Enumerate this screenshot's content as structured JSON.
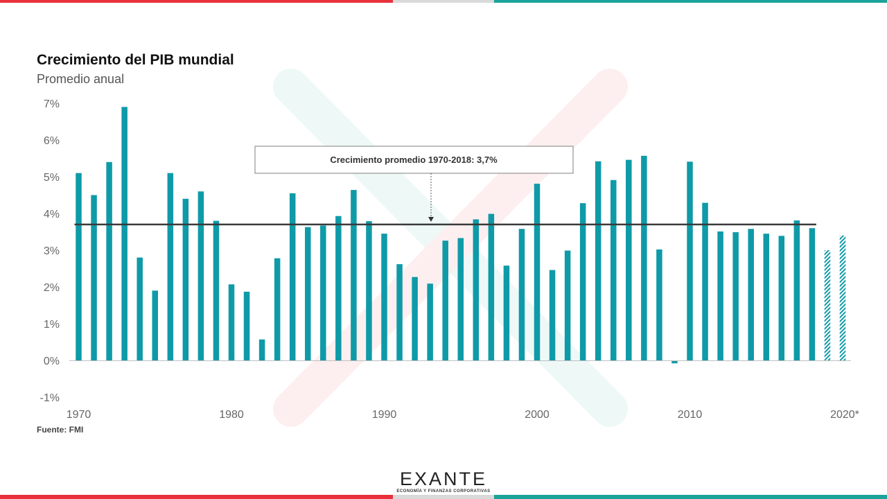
{
  "page": {
    "title": "Crecimiento del PIB mundial",
    "subtitle": "Promedio anual",
    "source": "Fuente: FMI",
    "logo": {
      "name": "EXANTE",
      "tagline": "ECONOMÍA Y FINANZAS CORPORATIVAS"
    },
    "colors": {
      "red": "#e8313a",
      "gray": "#d9d9d9",
      "teal": "#1aa39a",
      "bar": "#0f9aa8",
      "avg_line": "#3a3a3a"
    }
  },
  "chart_data": {
    "type": "bar",
    "title": "Crecimiento del PIB mundial",
    "subtitle": "Promedio anual",
    "xlabel": "",
    "ylabel": "",
    "ylim": [
      -1,
      7
    ],
    "y_ticks": [
      "-1%",
      "0%",
      "1%",
      "2%",
      "3%",
      "4%",
      "5%",
      "6%",
      "7%"
    ],
    "y_tick_values": [
      -1,
      0,
      1,
      2,
      3,
      4,
      5,
      6,
      7
    ],
    "x_tick_labels": [
      "1970",
      "1980",
      "1990",
      "2000",
      "2010",
      "2020*"
    ],
    "x_tick_years": [
      1970,
      1980,
      1990,
      2000,
      2010,
      2020
    ],
    "grid": false,
    "categories": [
      1970,
      1971,
      1972,
      1973,
      1974,
      1975,
      1976,
      1977,
      1978,
      1979,
      1980,
      1981,
      1982,
      1983,
      1984,
      1985,
      1986,
      1987,
      1988,
      1989,
      1990,
      1991,
      1992,
      1993,
      1994,
      1995,
      1996,
      1997,
      1998,
      1999,
      2000,
      2001,
      2002,
      2003,
      2004,
      2005,
      2006,
      2007,
      2008,
      2009,
      2010,
      2011,
      2012,
      2013,
      2014,
      2015,
      2016,
      2017,
      2018,
      2019,
      2020
    ],
    "values": [
      5.1,
      4.5,
      5.4,
      6.9,
      2.8,
      1.9,
      5.1,
      4.4,
      4.6,
      3.8,
      2.07,
      1.87,
      0.57,
      2.78,
      4.55,
      3.63,
      3.67,
      3.93,
      4.64,
      3.79,
      3.45,
      2.62,
      2.27,
      2.09,
      3.26,
      3.33,
      3.84,
      3.99,
      2.58,
      3.58,
      4.81,
      2.46,
      2.99,
      4.28,
      5.42,
      4.91,
      5.46,
      5.57,
      3.02,
      -0.08,
      5.41,
      4.29,
      3.51,
      3.49,
      3.58,
      3.45,
      3.39,
      3.81,
      3.6,
      3.0,
      3.4
    ],
    "projected_from": 2019,
    "average": {
      "value": 3.7,
      "label": "Crecimiento promedio 1970-2018: 3,7%",
      "from": 1970,
      "to": 2018
    }
  }
}
